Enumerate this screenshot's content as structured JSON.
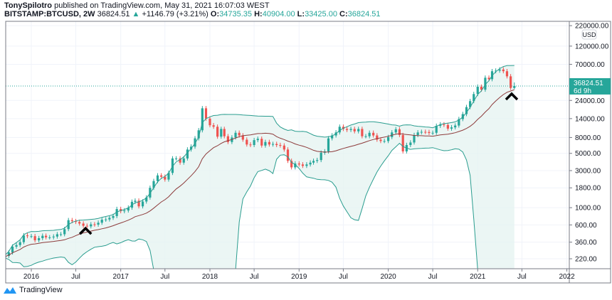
{
  "header": {
    "author": "TonySpilotro",
    "published": "published on TradingView.com, May 31, 2021 16:07:03 WEST",
    "symbol": "BITSTAMP:BTCUSD, 2W",
    "last": "36824.51",
    "change": "+1146.79 (+3.21%)",
    "o_label": "O:",
    "o": "34735.35",
    "h_label": "H:",
    "h": "40904.00",
    "l_label": "L:",
    "l": "33425.00",
    "c_label": "C:",
    "c": "36824.51"
  },
  "footer": {
    "brand": "TradingView"
  },
  "chart_data": {
    "type": "candlestick",
    "interval": "2W",
    "y_scale": "log",
    "currency": "USD",
    "ylim": [
      180,
      230000
    ],
    "y_ticks": [
      "220000.00",
      "120000.00",
      "70000.00",
      "24000.00",
      "14000.00",
      "8000.00",
      "5000.00",
      "3000.00",
      "1800.00",
      "1000.00",
      "600.00",
      "360.00",
      "220.00"
    ],
    "x_ticks": [
      {
        "label": "2016",
        "date": "2016-01-01"
      },
      {
        "label": "Jul",
        "date": "2016-07-01"
      },
      {
        "label": "2017",
        "date": "2017-01-01"
      },
      {
        "label": "Jul",
        "date": "2017-07-01"
      },
      {
        "label": "2018",
        "date": "2018-01-01"
      },
      {
        "label": "Jul",
        "date": "2018-07-01"
      },
      {
        "label": "2019",
        "date": "2019-01-01"
      },
      {
        "label": "Jul",
        "date": "2019-07-01"
      },
      {
        "label": "2020",
        "date": "2020-01-01"
      },
      {
        "label": "Jul",
        "date": "2020-07-01"
      },
      {
        "label": "2021",
        "date": "2021-01-01"
      },
      {
        "label": "Jul",
        "date": "2021-07-01"
      },
      {
        "label": "2022",
        "date": "2022-01-01"
      }
    ],
    "closes_by_month": [
      [
        "2015-09",
        230,
        240
      ],
      [
        "2015-10",
        265,
        315
      ],
      [
        "2015-11",
        330,
        360
      ],
      [
        "2015-12",
        440,
        430
      ],
      [
        "2016-01",
        430,
        380
      ],
      [
        "2016-02",
        405,
        435
      ],
      [
        "2016-03",
        415,
        415
      ],
      [
        "2016-04",
        425,
        455
      ],
      [
        "2016-05",
        455,
        530
      ],
      [
        "2016-06",
        690,
        670
      ],
      [
        "2016-07",
        655,
        625
      ],
      [
        "2016-08",
        585,
        575
      ],
      [
        "2016-09",
        610,
        605
      ],
      [
        "2016-10",
        640,
        700
      ],
      [
        "2016-11",
        705,
        740
      ],
      [
        "2016-12",
        780,
        960
      ],
      [
        "2017-01",
        900,
        920
      ],
      [
        "2017-02",
        1000,
        1190
      ],
      [
        "2017-03",
        1230,
        1040
      ],
      [
        "2017-04",
        1200,
        1350
      ],
      [
        "2017-05",
        1800,
        2200
      ],
      [
        "2017-06",
        2600,
        2500
      ],
      [
        "2017-07",
        2300,
        2800
      ],
      [
        "2017-08",
        4300,
        4300
      ],
      [
        "2017-09",
        3800,
        4300
      ],
      [
        "2017-10",
        5600,
        6100
      ],
      [
        "2017-11",
        7800,
        9900
      ],
      [
        "2017-12",
        19000,
        14000
      ],
      [
        "2018-01",
        11500,
        11000
      ],
      [
        "2018-02",
        8200,
        10300
      ],
      [
        "2018-03",
        8300,
        7000
      ],
      [
        "2018-04",
        8000,
        9200
      ],
      [
        "2018-05",
        8500,
        7500
      ],
      [
        "2018-06",
        6500,
        6400
      ],
      [
        "2018-07",
        7400,
        7700
      ],
      [
        "2018-08",
        6300,
        7000
      ],
      [
        "2018-09",
        6500,
        6600
      ],
      [
        "2018-10",
        6400,
        6300
      ],
      [
        "2018-11",
        5600,
        4000
      ],
      [
        "2018-12",
        3300,
        3700
      ],
      [
        "2019-01",
        3600,
        3450
      ],
      [
        "2019-02",
        3600,
        3800
      ],
      [
        "2019-03",
        4000,
        4100
      ],
      [
        "2019-04",
        5100,
        5300
      ],
      [
        "2019-05",
        7800,
        8500
      ],
      [
        "2019-06",
        9300,
        11000
      ],
      [
        "2019-07",
        10300,
        10000
      ],
      [
        "2019-08",
        10300,
        9600
      ],
      [
        "2019-09",
        10300,
        8300
      ],
      [
        "2019-10",
        8300,
        9200
      ],
      [
        "2019-11",
        8500,
        7500
      ],
      [
        "2019-12",
        7200,
        7200
      ],
      [
        "2020-01",
        8100,
        9300
      ],
      [
        "2020-02",
        10200,
        8600
      ],
      [
        "2020-03",
        5300,
        6400
      ],
      [
        "2020-04",
        6900,
        8600
      ],
      [
        "2020-05",
        9300,
        9450
      ],
      [
        "2020-06",
        9400,
        9150
      ],
      [
        "2020-07",
        9200,
        11300
      ],
      [
        "2020-08",
        11800,
        11600
      ],
      [
        "2020-09",
        10400,
        10800
      ],
      [
        "2020-10",
        11400,
        13800
      ],
      [
        "2020-11",
        16000,
        19700
      ],
      [
        "2020-12",
        23500,
        29000
      ],
      [
        "2021-01",
        36000,
        33000
      ],
      [
        "2021-02",
        47000,
        45000
      ],
      [
        "2021-03",
        57000,
        58000
      ],
      [
        "2021-04",
        60000,
        57000
      ],
      [
        "2021-05",
        49000,
        34735.35
      ]
    ],
    "last_candle": {
      "date": "2021-05-31",
      "open": 34735.35,
      "high": 40904.0,
      "low": 33425.0,
      "close": 36824.51
    },
    "last_price_label": "36824.51",
    "countdown": "6d 9h",
    "colors": {
      "up": "#26a69a",
      "down": "#ef5350",
      "basis": "#8d3b3b",
      "bands": "#2a9d8f",
      "fill": "#e6f4f1",
      "marker": "#000000"
    }
  }
}
